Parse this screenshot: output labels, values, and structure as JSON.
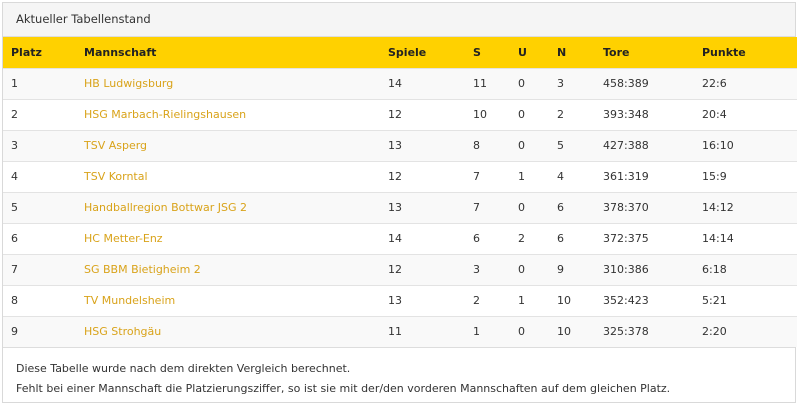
{
  "panel": {
    "title": "Aktueller Tabellenstand"
  },
  "table": {
    "headers": [
      "Platz",
      "Mannschaft",
      "Spiele",
      "S",
      "U",
      "N",
      "Tore",
      "Punkte"
    ],
    "rows": [
      [
        "1",
        "HB Ludwigsburg",
        "14",
        "11",
        "0",
        "3",
        "458:389",
        "22:6"
      ],
      [
        "2",
        "HSG Marbach-Rielingshausen",
        "12",
        "10",
        "0",
        "2",
        "393:348",
        "20:4"
      ],
      [
        "3",
        "TSV Asperg",
        "13",
        "8",
        "0",
        "5",
        "427:388",
        "16:10"
      ],
      [
        "4",
        "TSV Korntal",
        "12",
        "7",
        "1",
        "4",
        "361:319",
        "15:9"
      ],
      [
        "5",
        "Handballregion Bottwar JSG 2",
        "13",
        "7",
        "0",
        "6",
        "378:370",
        "14:12"
      ],
      [
        "6",
        "HC Metter-Enz",
        "14",
        "6",
        "2",
        "6",
        "372:375",
        "14:14"
      ],
      [
        "7",
        "SG BBM Bietigheim 2",
        "12",
        "3",
        "0",
        "9",
        "310:386",
        "6:18"
      ],
      [
        "8",
        "TV Mundelsheim",
        "13",
        "2",
        "1",
        "10",
        "352:423",
        "5:21"
      ],
      [
        "9",
        "HSG Strohgäu",
        "11",
        "1",
        "0",
        "10",
        "325:378",
        "2:20"
      ]
    ]
  },
  "footer": {
    "line1": "Diese Tabelle wurde nach dem direkten Vergleich berechnet.",
    "line2": "Fehlt bei einer Mannschaft die Platzierungsziffer, so ist sie mit der/den vorderen Mannschaften auf dem gleichen Platz."
  },
  "colors": {
    "header_bg": "#ffd100",
    "team_link": "#d9a31a"
  }
}
